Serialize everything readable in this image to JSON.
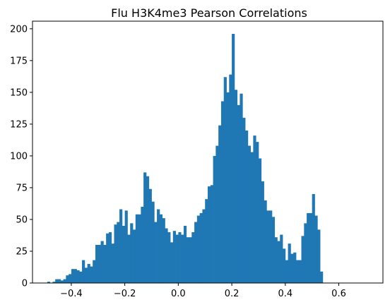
{
  "chart_data": {
    "type": "bar",
    "subtype": "histogram",
    "title": "Flu H3K4me3 Pearson Correlations",
    "xlabel": "",
    "ylabel": "",
    "xlim": [
      -0.545,
      0.765
    ],
    "ylim": [
      0,
      206
    ],
    "grid": false,
    "color": "#1f77b4",
    "xticks": [
      -0.4,
      -0.2,
      0.0,
      0.2,
      0.4,
      0.6
    ],
    "xtick_labels": [
      "−0.4",
      "−0.2",
      "0.0",
      "0.2",
      "0.4",
      "0.6"
    ],
    "yticks": [
      0,
      25,
      50,
      75,
      100,
      125,
      150,
      175,
      200
    ],
    "ytick_labels": [
      "0",
      "25",
      "50",
      "75",
      "100",
      "125",
      "150",
      "175",
      "200"
    ],
    "bin_start": -0.49,
    "bin_width": 0.01,
    "values": [
      1,
      0,
      1,
      3,
      3,
      2,
      3,
      6,
      7,
      11,
      11,
      10,
      9,
      18,
      12,
      15,
      13,
      18,
      30,
      30,
      33,
      30,
      39,
      40,
      31,
      46,
      48,
      58,
      45,
      57,
      38,
      47,
      42,
      54,
      54,
      60,
      87,
      84,
      74,
      64,
      48,
      58,
      54,
      51,
      43,
      40,
      32,
      41,
      38,
      40,
      38,
      45,
      36,
      36,
      40,
      48,
      53,
      55,
      58,
      66,
      76,
      77,
      100,
      108,
      124,
      143,
      162,
      150,
      164,
      196,
      152,
      140,
      149,
      130,
      120,
      108,
      103,
      116,
      111,
      98,
      80,
      65,
      57,
      57,
      52,
      36,
      33,
      38,
      27,
      18,
      31,
      23,
      24,
      18,
      18,
      37,
      47,
      55,
      55,
      70,
      53,
      42,
      9
    ]
  }
}
